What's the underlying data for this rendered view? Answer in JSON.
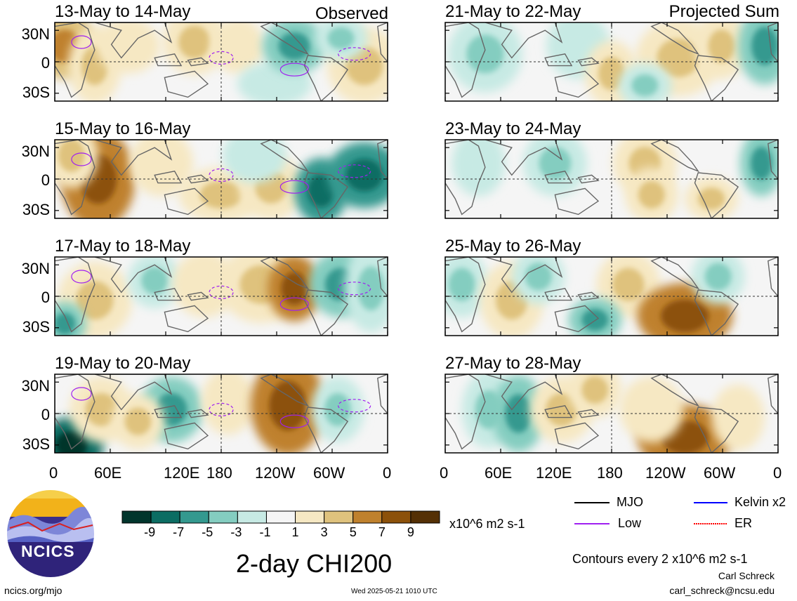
{
  "title": "2-day CHI200",
  "labels": {
    "observed": "Observed",
    "projected": "Projected Sum"
  },
  "panels_left": [
    {
      "title": "13-May to 14-May"
    },
    {
      "title": "15-May to 16-May"
    },
    {
      "title": "17-May to 18-May"
    },
    {
      "title": "19-May to 20-May"
    }
  ],
  "panels_right": [
    {
      "title": "21-May to 22-May"
    },
    {
      "title": "23-May to 24-May"
    },
    {
      "title": "25-May to 26-May"
    },
    {
      "title": "27-May to 28-May"
    }
  ],
  "lat_labels": [
    "30N",
    "0",
    "30S"
  ],
  "lon_labels": [
    "0",
    "60E",
    "120E",
    "180",
    "120W",
    "60W",
    "0"
  ],
  "colorbar": {
    "units": "x10^6 m2 s-1",
    "tick_labels": [
      "-9",
      "-7",
      "-5",
      "-3",
      "-1",
      "1",
      "3",
      "5",
      "7",
      "9"
    ],
    "colors": [
      "#01352c",
      "#0c6d63",
      "#34998f",
      "#84cdc0",
      "#c7eae4",
      "#f5f5f5",
      "#f6e8c3",
      "#dfc27d",
      "#bf812d",
      "#8c510a",
      "#543005"
    ]
  },
  "legend": {
    "items": [
      {
        "label": "MJO",
        "color": "#000000"
      },
      {
        "label": "Kelvin x2",
        "color": "#0000ff"
      },
      {
        "label": "Low",
        "color": "#a020f0"
      },
      {
        "label": "ER",
        "color": "#ff0000"
      }
    ],
    "contours_note": "Contours every 2 x10^6 m2 s-1"
  },
  "footer": {
    "site": "ncics.org/mjo",
    "timestamp": "Wed 2025-05-21 1010 UTC",
    "author": "Carl Schreck",
    "email": "carl_schreck@ncsu.edu"
  },
  "logo_text": "NCICS"
}
